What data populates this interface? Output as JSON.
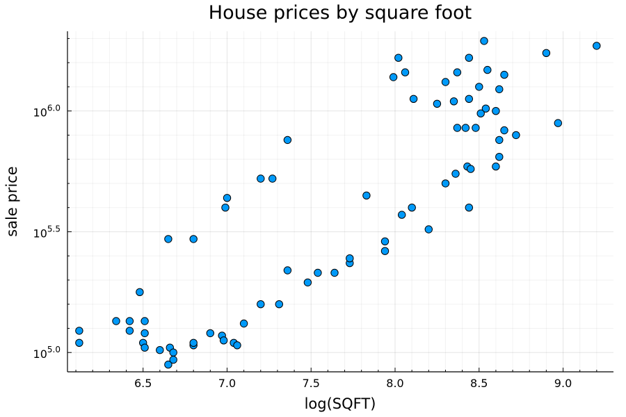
{
  "chart_data": {
    "type": "scatter",
    "title": "House prices by square foot",
    "xlabel": "log(SQFT)",
    "ylabel": "sale price",
    "xlim": [
      6.05,
      9.3
    ],
    "ylim": [
      4.92,
      6.33
    ],
    "y_scale": "log10",
    "x_ticks": [
      6.5,
      7.0,
      7.5,
      8.0,
      8.5,
      9.0
    ],
    "x_tick_labels": [
      "6.5",
      "7.0",
      "7.5",
      "8.0",
      "8.5",
      "9.0"
    ],
    "y_ticks": [
      5.0,
      5.5,
      6.0
    ],
    "y_tick_labels": [
      {
        "base": "10",
        "exp": "5.0"
      },
      {
        "base": "10",
        "exp": "5.5"
      },
      {
        "base": "10",
        "exp": "6.0"
      }
    ],
    "grid": true,
    "legend": "none",
    "series": [
      {
        "color": "#009AF9",
        "points": [
          [
            9.2,
            6.27
          ],
          [
            8.9,
            6.24
          ],
          [
            8.97,
            5.95
          ],
          [
            8.72,
            5.9
          ],
          [
            8.65,
            5.92
          ],
          [
            8.62,
            5.88
          ],
          [
            8.53,
            6.29
          ],
          [
            8.44,
            6.22
          ],
          [
            8.62,
            6.09
          ],
          [
            8.65,
            6.15
          ],
          [
            8.55,
            6.17
          ],
          [
            8.37,
            6.16
          ],
          [
            8.06,
            6.16
          ],
          [
            8.02,
            6.22
          ],
          [
            7.99,
            6.14
          ],
          [
            8.3,
            6.12
          ],
          [
            8.5,
            6.1
          ],
          [
            8.11,
            6.05
          ],
          [
            8.25,
            6.03
          ],
          [
            8.35,
            6.04
          ],
          [
            8.44,
            6.05
          ],
          [
            8.54,
            6.01
          ],
          [
            8.6,
            6.0
          ],
          [
            8.51,
            5.99
          ],
          [
            8.48,
            5.93
          ],
          [
            8.42,
            5.93
          ],
          [
            8.37,
            5.93
          ],
          [
            8.44,
            5.6
          ],
          [
            8.2,
            5.51
          ],
          [
            8.62,
            5.81
          ],
          [
            8.6,
            5.77
          ],
          [
            8.43,
            5.77
          ],
          [
            8.45,
            5.76
          ],
          [
            8.36,
            5.74
          ],
          [
            8.3,
            5.7
          ],
          [
            7.36,
            5.88
          ],
          [
            7.2,
            5.72
          ],
          [
            7.27,
            5.72
          ],
          [
            7.0,
            5.64
          ],
          [
            6.99,
            5.6
          ],
          [
            6.65,
            5.47
          ],
          [
            6.8,
            5.47
          ],
          [
            6.48,
            5.25
          ],
          [
            6.12,
            5.09
          ],
          [
            6.12,
            5.04
          ],
          [
            6.34,
            5.13
          ],
          [
            6.42,
            5.13
          ],
          [
            6.42,
            5.09
          ],
          [
            6.51,
            5.13
          ],
          [
            6.51,
            5.08
          ],
          [
            6.5,
            5.04
          ],
          [
            6.51,
            5.02
          ],
          [
            6.6,
            5.01
          ],
          [
            6.66,
            5.02
          ],
          [
            6.68,
            5.0
          ],
          [
            6.65,
            4.95
          ],
          [
            6.68,
            4.97
          ],
          [
            6.8,
            5.03
          ],
          [
            6.8,
            5.04
          ],
          [
            6.9,
            5.08
          ],
          [
            6.97,
            5.07
          ],
          [
            7.04,
            5.04
          ],
          [
            7.06,
            5.03
          ],
          [
            6.98,
            5.05
          ],
          [
            7.1,
            5.12
          ],
          [
            7.2,
            5.2
          ],
          [
            7.31,
            5.2
          ],
          [
            7.36,
            5.34
          ],
          [
            7.48,
            5.29
          ],
          [
            7.54,
            5.33
          ],
          [
            7.64,
            5.33
          ],
          [
            7.73,
            5.37
          ],
          [
            7.73,
            5.39
          ],
          [
            7.94,
            5.42
          ],
          [
            7.94,
            5.46
          ],
          [
            7.83,
            5.65
          ],
          [
            8.04,
            5.57
          ],
          [
            8.1,
            5.6
          ]
        ]
      }
    ]
  }
}
